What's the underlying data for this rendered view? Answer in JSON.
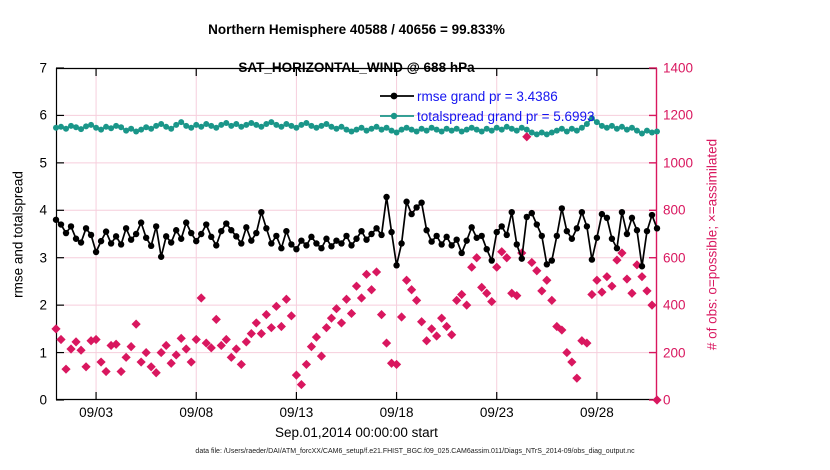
{
  "colors": {
    "rmse": "#000000",
    "totalspread": "#1A9689",
    "obs": "#D9175F",
    "grid": "#F6CEDC",
    "legend_text": "#1414F0",
    "axis_black": "#000000"
  },
  "chart_data": {
    "type": "line",
    "title_line1": "Northern Hemisphere 40588 / 40656 = 99.833%",
    "title_line2": "SAT_HORIZONTAL_WIND @ 688 hPa",
    "xlabel": "Sep.01,2014 00:00:00 start",
    "ylabel_left": "rmse and totalspread",
    "ylabel_right": "# of obs: o=possible; ×=assimilated",
    "x_range_days": [
      0,
      30
    ],
    "time_step_days": 0.25,
    "xticks": {
      "days": [
        2,
        7,
        12,
        17,
        22,
        27
      ],
      "labels": [
        "09/03",
        "09/08",
        "09/13",
        "09/18",
        "09/23",
        "09/28"
      ]
    },
    "ylim_left": [
      0,
      7
    ],
    "yticks_left": [
      0,
      1,
      2,
      3,
      4,
      5,
      6,
      7
    ],
    "ylim_right": [
      0,
      1400
    ],
    "yticks_right": [
      0,
      200,
      400,
      600,
      800,
      1000,
      1200,
      1400
    ],
    "grid": true,
    "legend_position": "top-center-inside",
    "series": [
      {
        "name": "rmse",
        "label": "rmse grand pr = 3.4386",
        "style": "line-circle",
        "axis": "left",
        "values": [
          3.8,
          3.7,
          3.52,
          3.66,
          3.4,
          3.32,
          3.62,
          3.48,
          3.12,
          3.35,
          3.55,
          3.3,
          3.45,
          3.28,
          3.62,
          3.38,
          3.5,
          3.74,
          3.42,
          3.25,
          3.66,
          3.02,
          3.45,
          3.32,
          3.58,
          3.4,
          3.74,
          3.52,
          3.35,
          3.5,
          3.7,
          3.44,
          3.26,
          3.56,
          3.72,
          3.58,
          3.45,
          3.3,
          3.64,
          3.36,
          3.52,
          3.96,
          3.62,
          3.3,
          3.46,
          3.2,
          3.56,
          3.28,
          3.18,
          3.36,
          3.26,
          3.44,
          3.3,
          3.2,
          3.4,
          3.24,
          3.36,
          3.3,
          3.46,
          3.26,
          3.4,
          3.56,
          3.38,
          3.5,
          3.62,
          3.48,
          4.28,
          3.54,
          2.84,
          3.3,
          4.18,
          3.92,
          4.06,
          4.16,
          3.58,
          3.34,
          3.46,
          3.28,
          3.44,
          3.26,
          3.38,
          3.1,
          3.36,
          3.64,
          3.42,
          3.46,
          3.18,
          2.94,
          3.54,
          3.66,
          3.48,
          3.96,
          3.28,
          2.98,
          3.86,
          3.94,
          3.7,
          3.46,
          2.86,
          2.94,
          3.46,
          4.04,
          3.56,
          3.4,
          3.62,
          3.96,
          3.66,
          2.96,
          3.42,
          3.92,
          3.84,
          3.4,
          3.2,
          3.96,
          3.5,
          3.84,
          3.58,
          2.82,
          3.56,
          3.9,
          3.62
        ]
      },
      {
        "name": "totalspread",
        "label": "totalspread grand pr = 5.6993",
        "style": "line-circle",
        "axis": "left",
        "values": [
          5.74,
          5.76,
          5.72,
          5.78,
          5.75,
          5.71,
          5.77,
          5.8,
          5.74,
          5.7,
          5.76,
          5.73,
          5.78,
          5.75,
          5.68,
          5.72,
          5.66,
          5.7,
          5.75,
          5.72,
          5.78,
          5.82,
          5.76,
          5.72,
          5.8,
          5.86,
          5.78,
          5.74,
          5.8,
          5.76,
          5.82,
          5.78,
          5.74,
          5.8,
          5.84,
          5.78,
          5.82,
          5.76,
          5.8,
          5.84,
          5.8,
          5.76,
          5.82,
          5.86,
          5.8,
          5.76,
          5.82,
          5.78,
          5.74,
          5.8,
          5.84,
          5.78,
          5.74,
          5.78,
          5.82,
          5.76,
          5.72,
          5.76,
          5.7,
          5.66,
          5.7,
          5.74,
          5.68,
          5.72,
          5.76,
          5.7,
          5.74,
          5.68,
          5.64,
          5.7,
          5.74,
          5.7,
          5.66,
          5.72,
          5.68,
          5.74,
          5.7,
          5.66,
          5.72,
          5.68,
          5.72,
          5.66,
          5.7,
          5.74,
          5.7,
          5.66,
          5.72,
          5.68,
          5.74,
          5.7,
          5.76,
          5.72,
          5.68,
          5.74,
          5.7,
          5.64,
          5.6,
          5.64,
          5.6,
          5.64,
          5.68,
          5.72,
          5.66,
          5.72,
          5.68,
          5.74,
          5.82,
          5.94,
          5.86,
          5.78,
          5.74,
          5.78,
          5.72,
          5.76,
          5.7,
          5.74,
          5.68,
          5.62,
          5.68,
          5.64,
          5.66
        ]
      },
      {
        "name": "num_obs",
        "label": "# of obs",
        "style": "scatter-diamond",
        "axis": "right",
        "values": [
          300,
          255,
          130,
          215,
          245,
          210,
          140,
          250,
          255,
          160,
          120,
          230,
          235,
          120,
          180,
          225,
          320,
          160,
          200,
          140,
          115,
          200,
          230,
          155,
          190,
          260,
          215,
          160,
          255,
          430,
          240,
          220,
          340,
          230,
          255,
          180,
          215,
          150,
          245,
          280,
          325,
          280,
          360,
          305,
          395,
          310,
          425,
          355,
          105,
          65,
          150,
          225,
          265,
          185,
          305,
          345,
          385,
          325,
          425,
          365,
          480,
          430,
          530,
          465,
          540,
          360,
          240,
          155,
          150,
          350,
          505,
          465,
          420,
          330,
          250,
          300,
          270,
          345,
          310,
          275,
          420,
          445,
          400,
          560,
          600,
          475,
          450,
          415,
          560,
          625,
          600,
          450,
          440,
          620,
          1110,
          580,
          545,
          460,
          505,
          420,
          310,
          295,
          200,
          160,
          92,
          250,
          240,
          445,
          505,
          455,
          520,
          480,
          590,
          620,
          510,
          450,
          570,
          520,
          460,
          400,
          0
        ]
      }
    ],
    "caption": "data file: /Users/raeder/DAI/ATM_forcXX/CAM6_setup/f.e21.FHIST_BGC.f09_025.CAM6assim.011/Diags_NTrS_2014-09/obs_diag_output.nc"
  },
  "legend": {
    "items": [
      {
        "label": "rmse grand pr = 3.4386"
      },
      {
        "label": "totalspread grand pr = 5.6993"
      }
    ]
  }
}
